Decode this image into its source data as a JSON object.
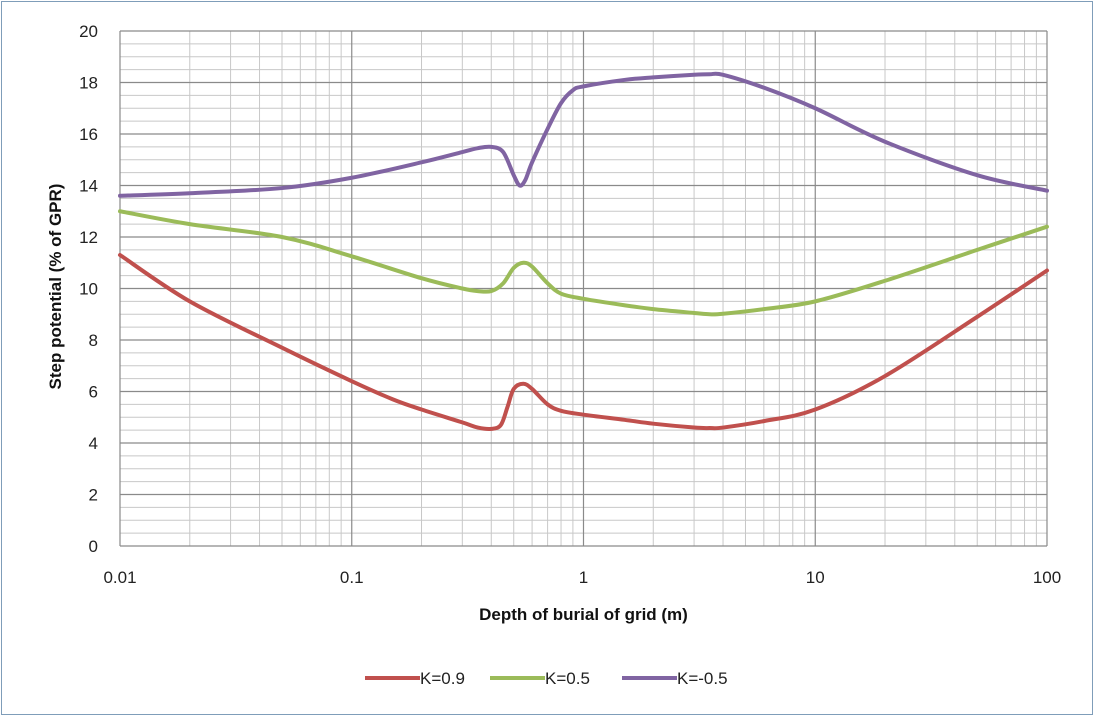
{
  "chart_data": {
    "type": "line",
    "xscale": "log",
    "xlim": [
      0.01,
      100
    ],
    "ylim": [
      0,
      20
    ],
    "grid": true,
    "legend_position": "bottom",
    "xlabel": "Depth of burial of grid (m)",
    "ylabel": "Step potential (% of GPR)",
    "x_ticks": [
      0.01,
      0.1,
      1,
      10,
      100
    ],
    "x_tick_labels": [
      "0.01",
      "0.1",
      "1",
      "10",
      "100"
    ],
    "y_ticks": [
      0,
      2,
      4,
      6,
      8,
      10,
      12,
      14,
      16,
      18,
      20
    ],
    "y_tick_labels": [
      "0",
      "2",
      "4",
      "6",
      "8",
      "10",
      "12",
      "14",
      "16",
      "18",
      "20"
    ],
    "series": [
      {
        "name": "K=0.9",
        "color": "#c0504d",
        "x": [
          0.01,
          0.02,
          0.05,
          0.1,
          0.15,
          0.2,
          0.3,
          0.35,
          0.4,
          0.44,
          0.47,
          0.5,
          0.55,
          0.6,
          0.7,
          0.8,
          1,
          1.5,
          2,
          3,
          3.5,
          4,
          6,
          10,
          20,
          50,
          100
        ],
        "y": [
          11.3,
          9.5,
          7.7,
          6.4,
          5.7,
          5.3,
          4.8,
          4.6,
          4.55,
          4.7,
          5.4,
          6.1,
          6.3,
          6.1,
          5.5,
          5.25,
          5.1,
          4.9,
          4.75,
          4.6,
          4.58,
          4.6,
          4.85,
          5.3,
          6.6,
          8.9,
          10.7
        ]
      },
      {
        "name": "K=0.5",
        "color": "#9bbb59",
        "x": [
          0.01,
          0.02,
          0.05,
          0.1,
          0.2,
          0.3,
          0.35,
          0.4,
          0.45,
          0.5,
          0.55,
          0.6,
          0.7,
          0.8,
          1,
          1.5,
          2,
          3,
          3.5,
          4,
          6,
          10,
          20,
          50,
          100
        ],
        "y": [
          13.0,
          12.5,
          12.0,
          11.25,
          10.4,
          10.0,
          9.9,
          9.9,
          10.2,
          10.8,
          11.0,
          10.85,
          10.2,
          9.8,
          9.6,
          9.35,
          9.2,
          9.05,
          9.0,
          9.02,
          9.2,
          9.5,
          10.3,
          11.5,
          12.4
        ]
      },
      {
        "name": "K=-0.5",
        "color": "#8064a2",
        "x": [
          0.01,
          0.02,
          0.05,
          0.1,
          0.2,
          0.3,
          0.35,
          0.4,
          0.45,
          0.5,
          0.53,
          0.56,
          0.6,
          0.7,
          0.8,
          0.9,
          1,
          1.5,
          2,
          3,
          3.5,
          4,
          6,
          10,
          20,
          50,
          100
        ],
        "y": [
          13.6,
          13.7,
          13.9,
          14.3,
          14.9,
          15.3,
          15.45,
          15.5,
          15.3,
          14.4,
          14.0,
          14.2,
          14.9,
          16.2,
          17.2,
          17.7,
          17.85,
          18.1,
          18.2,
          18.3,
          18.32,
          18.3,
          17.8,
          17.0,
          15.7,
          14.4,
          13.8
        ]
      }
    ]
  }
}
